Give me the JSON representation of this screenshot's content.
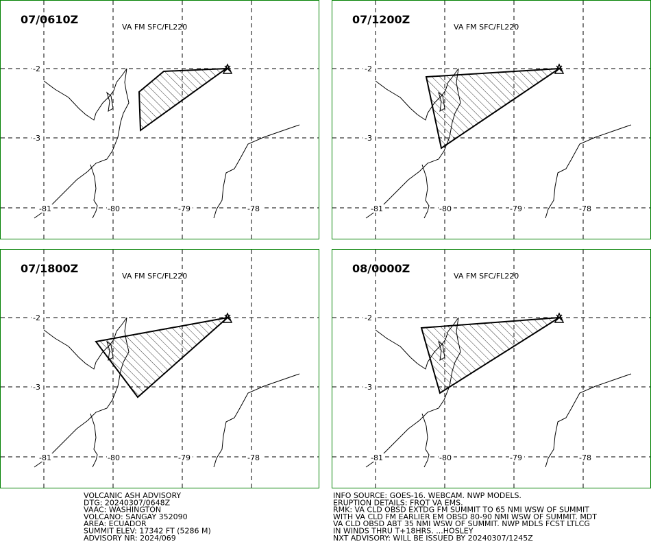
{
  "panels": [
    {
      "time": "07/0610Z",
      "subtitle": "VA FM SFC/FL220"
    },
    {
      "time": "07/1200Z",
      "subtitle": "VA FM SFC/FL220"
    },
    {
      "time": "07/1800Z",
      "subtitle": "VA FM SFC/FL220"
    },
    {
      "time": "08/0000Z",
      "subtitle": "VA FM SFC/FL220"
    }
  ],
  "axes": {
    "x_labels": [
      "-81",
      "-80",
      "-79",
      "-78"
    ],
    "y_labels": [
      "-2",
      "-3"
    ]
  },
  "advisory_left": [
    "VOLCANIC ASH ADVISORY",
    "DTG: 20240307/0648Z",
    "VAAC: WASHINGTON",
    "VOLCANO: SANGAY 352090",
    "AREA: ECUADOR",
    "SUMMIT ELEV: 17342 FT (5286 M)",
    "ADVISORY NR: 2024/069"
  ],
  "advisory_right": [
    "INFO SOURCE: GOES-16. WEBCAM. NWP MODELS.",
    "ERUPTION DETAILS: FRQT VA EMS.",
    "RMK: VA CLD OBSD EXTDG FM SUMMIT TO 65 NMI WSW OF SUMMIT",
    "WITH VA CLD FM EARLIER EM OBSD 80-90 NMI WSW OF SUMMIT. MDT",
    "VA CLD OBSD ABT 35 NMI WSW OF SUMMIT. NWP MDLS FCST LTLCG",
    "IN WINDS THRU T+18HRS. ...HOSLEY",
    "NXT ADVISORY: WILL BE ISSUED BY 20240307/1245Z"
  ]
}
